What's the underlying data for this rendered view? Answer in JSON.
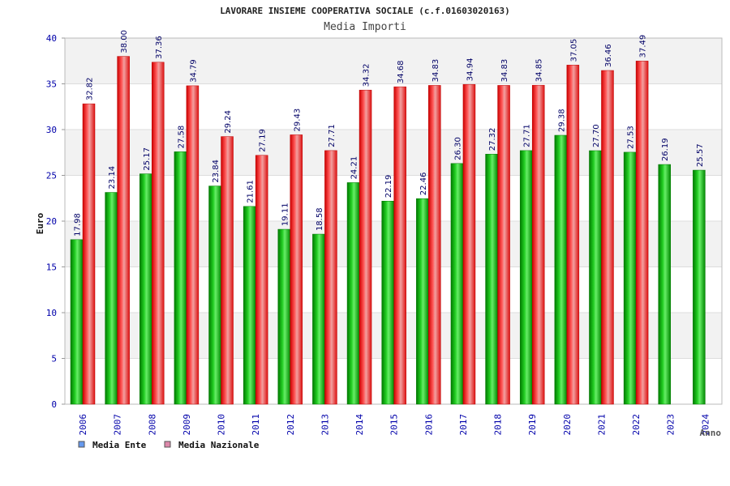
{
  "chart_data": {
    "type": "bar",
    "title": "LAVORARE INSIEME COOPERATIVA SOCIALE (c.f.01603020163)",
    "subtitle": "Media Importi",
    "xlabel": "Anno",
    "ylabel": "Euro",
    "ylim": [
      0,
      40
    ],
    "yticks": [
      0,
      5,
      10,
      15,
      20,
      25,
      30,
      35,
      40
    ],
    "categories": [
      "2006",
      "2007",
      "2008",
      "2009",
      "2010",
      "2011",
      "2012",
      "2013",
      "2014",
      "2015",
      "2016",
      "2017",
      "2018",
      "2019",
      "2020",
      "2021",
      "2022",
      "2023",
      "2024"
    ],
    "series": [
      {
        "name": "Media Ente",
        "color": "#00aa00",
        "legend_color": "#6699ee",
        "values": [
          17.98,
          23.14,
          25.17,
          27.58,
          23.84,
          21.61,
          19.11,
          18.58,
          24.21,
          22.19,
          22.46,
          26.3,
          27.32,
          27.71,
          29.38,
          27.7,
          27.53,
          26.19,
          25.57
        ],
        "labels": [
          "17.98",
          "23.14",
          "25.17",
          "27.58",
          "23.84",
          "21.61",
          "19.11",
          "18.58",
          "24.21",
          "22.19",
          "22.46",
          "26.30",
          "27.32",
          "27.71",
          "29.38",
          "27.70",
          "27.53",
          "26.19",
          "25.57"
        ]
      },
      {
        "name": "Media Nazionale",
        "color": "#ee1111",
        "legend_color": "#dd88aa",
        "values": [
          32.82,
          38.0,
          37.36,
          34.79,
          29.24,
          27.19,
          29.43,
          27.71,
          34.32,
          34.68,
          34.83,
          34.94,
          34.83,
          34.85,
          37.05,
          36.46,
          37.49,
          null,
          null
        ],
        "labels": [
          "32.82",
          "38.00",
          "37.36",
          "34.79",
          "29.24",
          "27.19",
          "29.43",
          "27.71",
          "34.32",
          "34.68",
          "34.83",
          "34.94",
          "34.83",
          "34.85",
          "37.05",
          "36.46",
          "37.49",
          null,
          null
        ]
      }
    ],
    "grid": true,
    "legend_position": "bottom-left"
  }
}
